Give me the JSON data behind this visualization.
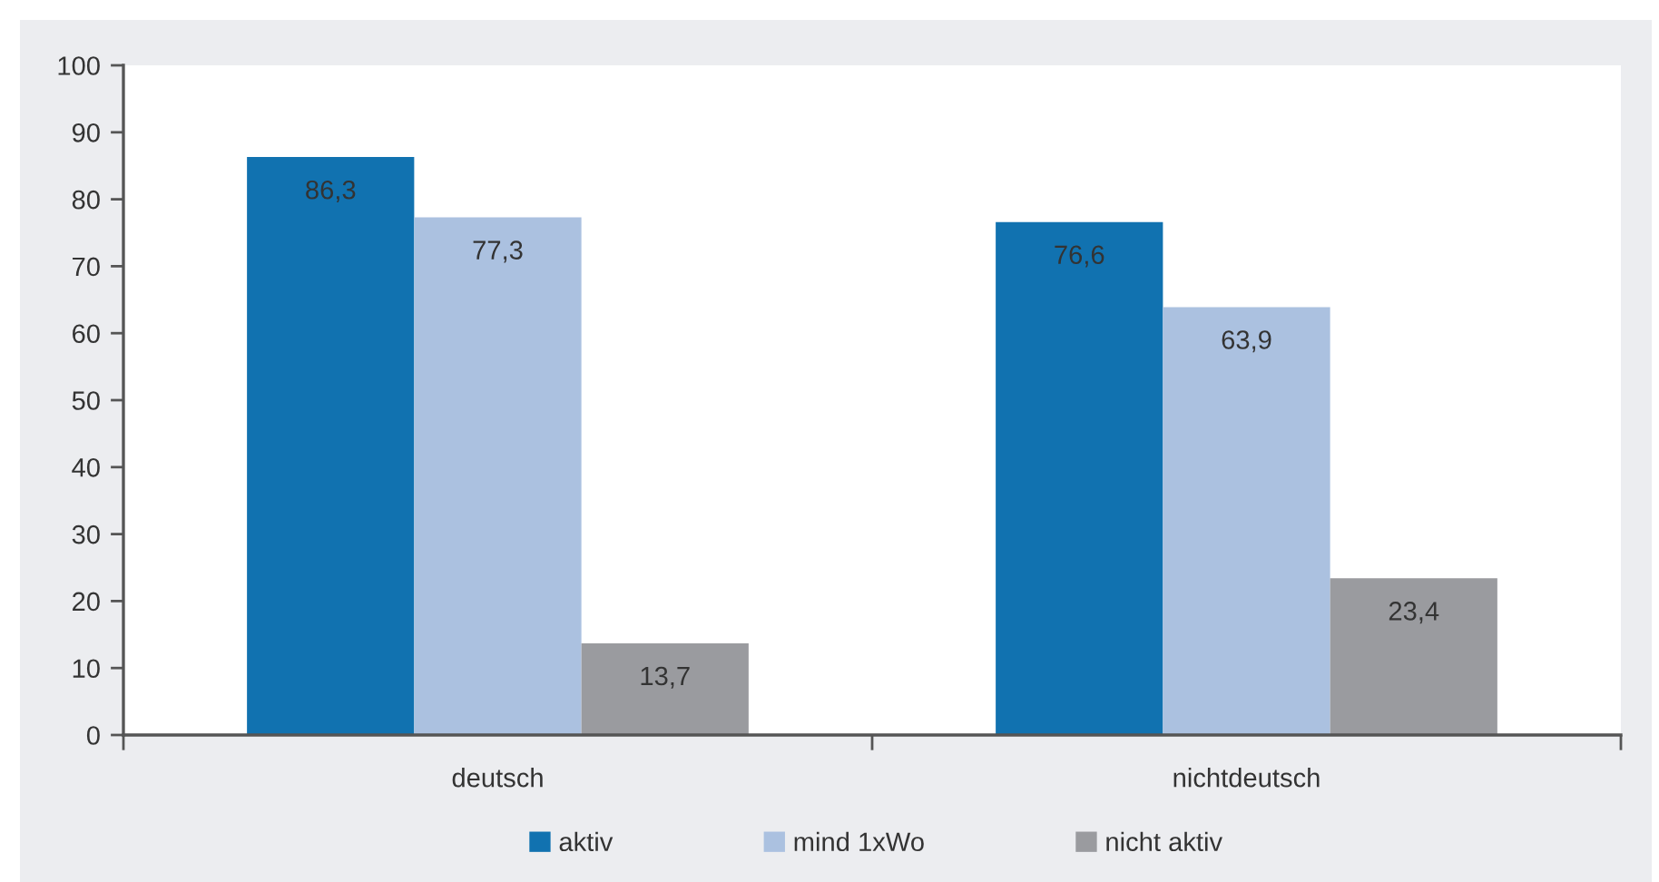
{
  "chart_data": {
    "type": "bar",
    "categories": [
      "deutsch",
      "nichtdeutsch"
    ],
    "series": [
      {
        "name": "aktiv",
        "color": "#1172b0",
        "values": [
          86.3,
          76.6
        ],
        "value_labels": [
          "86,3",
          "76,6"
        ]
      },
      {
        "name": "mind 1xWo",
        "color": "#abc1e0",
        "values": [
          77.3,
          63.9
        ],
        "value_labels": [
          "77,3",
          "63,9"
        ]
      },
      {
        "name": "nicht aktiv",
        "color": "#9a9b9f",
        "values": [
          13.7,
          23.4
        ],
        "value_labels": [
          "13,7",
          "23,4"
        ]
      }
    ],
    "ylim": [
      0,
      100
    ],
    "yticks": [
      0,
      10,
      20,
      30,
      40,
      50,
      60,
      70,
      80,
      90,
      100
    ],
    "grid": false,
    "legend": "bottom"
  }
}
